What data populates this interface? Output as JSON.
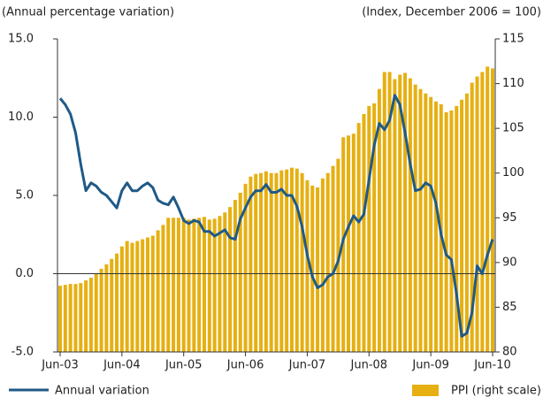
{
  "chart_data": {
    "type": "bar-line",
    "y_axis_label": "(Annual percentage variation)",
    "y2_axis_label": "(Index, December 2006 = 100)",
    "categories": [
      "Jun-03",
      null,
      null,
      null,
      null,
      null,
      null,
      null,
      null,
      null,
      null,
      null,
      "Jun-04",
      null,
      null,
      null,
      null,
      null,
      null,
      null,
      null,
      null,
      null,
      null,
      "Jun-05",
      null,
      null,
      null,
      null,
      null,
      null,
      null,
      null,
      null,
      null,
      null,
      "Jun-06",
      null,
      null,
      null,
      null,
      null,
      null,
      null,
      null,
      null,
      null,
      null,
      "Jun-07",
      null,
      null,
      null,
      null,
      null,
      null,
      null,
      null,
      null,
      null,
      null,
      "Jun-08",
      null,
      null,
      null,
      null,
      null,
      null,
      null,
      null,
      null,
      null,
      null,
      "Jun-09",
      null,
      null,
      null,
      null,
      null,
      null,
      null,
      null,
      null,
      null,
      null,
      "Jun-10"
    ],
    "ylim": [
      -5,
      15
    ],
    "yticks": [
      {
        "value": -5,
        "label": "-5.0"
      },
      {
        "value": 0,
        "label": "0.0"
      },
      {
        "value": 5,
        "label": "5.0"
      },
      {
        "value": 10,
        "label": "10.0"
      },
      {
        "value": 15,
        "label": "15.0"
      }
    ],
    "y2lim": [
      80,
      115
    ],
    "y2ticks": [
      80,
      85,
      90,
      95,
      100,
      105,
      110,
      115
    ],
    "series": [
      {
        "name": "PPI (right scale)",
        "type": "bar",
        "axis": "y2",
        "color": "#e6b012",
        "values": [
          87.4,
          87.5,
          87.6,
          87.6,
          87.7,
          88.0,
          88.3,
          88.8,
          89.3,
          89.8,
          90.4,
          91.0,
          91.8,
          92.4,
          92.2,
          92.4,
          92.6,
          92.8,
          93.0,
          93.6,
          94.2,
          95.0,
          95.0,
          95.0,
          95.0,
          94.8,
          94.9,
          95.0,
          95.1,
          94.8,
          94.9,
          95.2,
          95.6,
          96.2,
          97.0,
          97.8,
          98.8,
          99.6,
          99.9,
          100.0,
          100.2,
          100.0,
          100.0,
          100.3,
          100.4,
          100.6,
          100.5,
          100.0,
          99.2,
          98.6,
          98.4,
          99.4,
          100.0,
          100.8,
          101.6,
          104.0,
          104.2,
          104.4,
          105.6,
          106.6,
          107.5,
          107.8,
          109.4,
          111.3,
          111.3,
          110.5,
          111.0,
          111.2,
          110.6,
          109.9,
          109.4,
          108.9,
          108.5,
          108.0,
          107.7,
          106.8,
          107.0,
          107.5,
          108.2,
          108.9,
          110.1,
          110.8,
          111.3,
          111.9,
          111.7
        ]
      },
      {
        "name": "Annual variation",
        "type": "line",
        "axis": "y",
        "color": "#1f5a87",
        "values": [
          11.2,
          10.8,
          10.2,
          9.0,
          7.0,
          5.3,
          5.8,
          5.6,
          5.2,
          5.0,
          4.6,
          4.2,
          5.3,
          5.8,
          5.3,
          5.3,
          5.6,
          5.8,
          5.5,
          4.7,
          4.5,
          4.4,
          4.9,
          4.2,
          3.4,
          3.2,
          3.4,
          3.3,
          2.7,
          2.7,
          2.4,
          2.6,
          2.8,
          2.3,
          2.2,
          3.5,
          4.2,
          4.9,
          5.3,
          5.3,
          5.7,
          5.2,
          5.2,
          5.4,
          5.0,
          5.0,
          4.3,
          3.0,
          1.2,
          -0.2,
          -0.9,
          -0.7,
          -0.2,
          0.0,
          0.8,
          2.2,
          3.0,
          3.7,
          3.3,
          3.8,
          6.0,
          8.2,
          9.6,
          9.2,
          9.8,
          11.4,
          10.8,
          9.0,
          7.0,
          5.3,
          5.4,
          5.8,
          5.6,
          4.5,
          2.5,
          1.2,
          0.9,
          -1.3,
          -4.0,
          -3.8,
          -2.5,
          0.5,
          0.0,
          1.2,
          2.2
        ]
      }
    ]
  }
}
